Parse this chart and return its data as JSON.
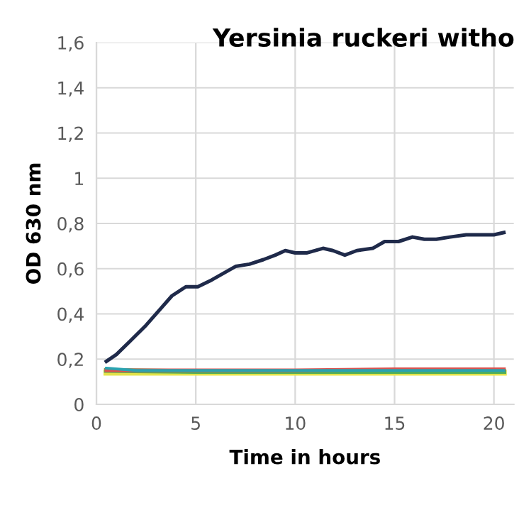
{
  "chart_data": {
    "type": "line",
    "title": "Yersinia ruckeri witho",
    "xlabel": "Time in hours",
    "ylabel": "OD 630 nm",
    "xlim": [
      0,
      21
    ],
    "xticks": [
      0,
      5,
      10,
      15,
      20
    ],
    "ylim": [
      0,
      1.6
    ],
    "yticks": [
      0,
      {
        "value": 0.2,
        "label": "0,2"
      },
      {
        "value": 0.4,
        "label": "0,4"
      },
      {
        "value": 0.6,
        "label": "0,6"
      },
      {
        "value": 0.8,
        "label": "0,8"
      },
      1,
      {
        "value": 1.2,
        "label": "1,2"
      },
      {
        "value": 1.4,
        "label": "1,4"
      },
      {
        "value": 1.6,
        "label": "1,6"
      }
    ],
    "grid": true,
    "marker": "none",
    "line_style": "solid",
    "series": [
      {
        "color": "#1f2a4a",
        "x": [
          0.5,
          1.0,
          1.7,
          2.5,
          3.2,
          3.8,
          4.5,
          5.1,
          5.8,
          6.4,
          7.0,
          7.7,
          8.4,
          9.0,
          9.5,
          10.0,
          10.6,
          11.4,
          11.9,
          12.5,
          13.1,
          13.9,
          14.5,
          15.2,
          15.9,
          16.5,
          17.1,
          17.8,
          18.6,
          19.2,
          20.0,
          20.5
        ],
        "values": [
          0.19,
          0.22,
          0.28,
          0.35,
          0.42,
          0.48,
          0.52,
          0.52,
          0.55,
          0.58,
          0.61,
          0.62,
          0.64,
          0.66,
          0.68,
          0.67,
          0.67,
          0.69,
          0.68,
          0.66,
          0.68,
          0.69,
          0.72,
          0.72,
          0.74,
          0.73,
          0.73,
          0.74,
          0.75,
          0.75,
          0.75,
          0.76
        ]
      },
      {
        "color": "#e3e34a",
        "x": [
          0.5,
          5,
          10,
          15,
          20.5
        ],
        "values": [
          0.14,
          0.14,
          0.14,
          0.14,
          0.14
        ]
      },
      {
        "color": "#4fae5a",
        "x": [
          0.5,
          5,
          10,
          15,
          20.5
        ],
        "values": [
          0.15,
          0.145,
          0.145,
          0.145,
          0.145
        ]
      },
      {
        "color": "#d9534f",
        "x": [
          0.5,
          5,
          10,
          15,
          20.5
        ],
        "values": [
          0.15,
          0.15,
          0.15,
          0.155,
          0.155
        ]
      },
      {
        "color": "#2aa3b0",
        "x": [
          0.5,
          2,
          5,
          10,
          15,
          20.5
        ],
        "values": [
          0.16,
          0.15,
          0.15,
          0.15,
          0.15,
          0.15
        ]
      }
    ]
  }
}
